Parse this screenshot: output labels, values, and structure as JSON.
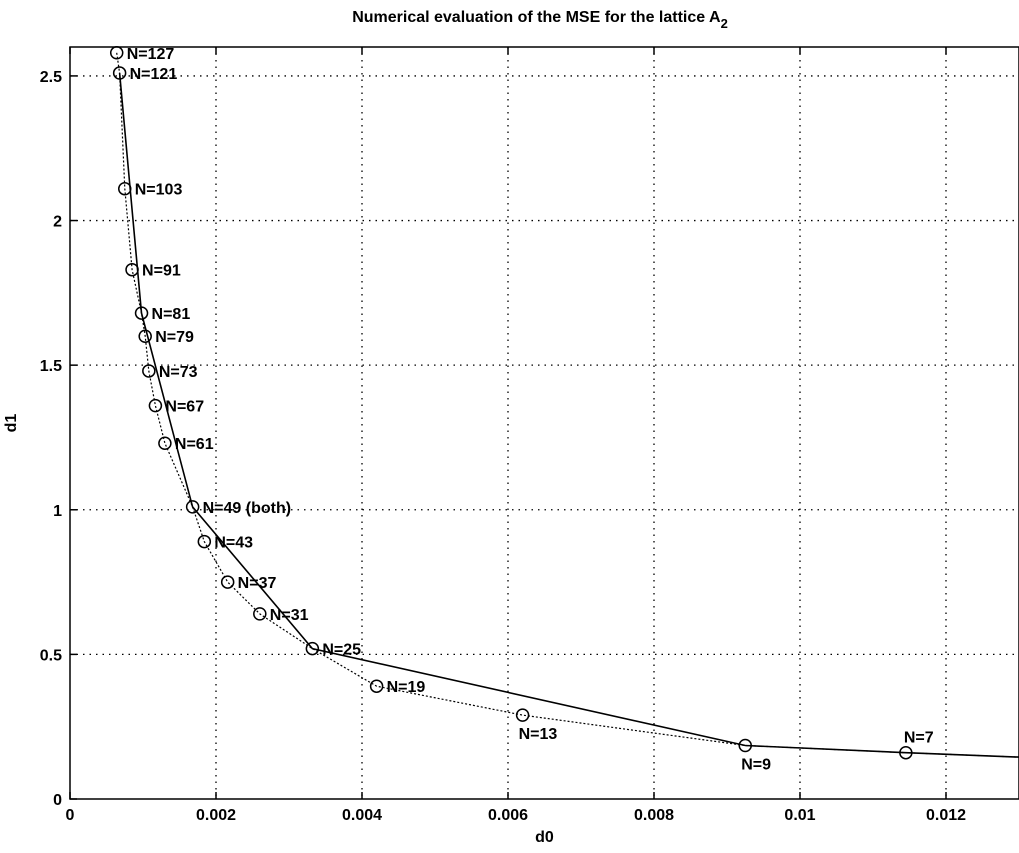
{
  "chart_data": {
    "type": "line",
    "title": "Numerical evaluation of the MSE for the lattice A",
    "title_subscript": "2",
    "xlabel": "d0",
    "ylabel": "d1",
    "xlim": [
      0,
      0.013
    ],
    "ylim": [
      0,
      2.6
    ],
    "xticks": [
      0,
      0.002,
      0.004,
      0.006,
      0.008,
      0.01,
      0.012
    ],
    "xtick_labels": [
      "0",
      "0.002",
      "0.004",
      "0.006",
      "0.008",
      "0.01",
      "0.012"
    ],
    "yticks": [
      0,
      0.5,
      1,
      1.5,
      2,
      2.5
    ],
    "ytick_labels": [
      "0",
      "0.5",
      "1",
      "1.5",
      "2",
      "2.5"
    ],
    "grid": true,
    "series": [
      {
        "style": "solid",
        "x": [
          0.00068,
          0.00098,
          0.00168,
          0.00332,
          0.00925,
          0.01145,
          0.013
        ],
        "y": [
          2.51,
          1.68,
          1.01,
          0.52,
          0.185,
          0.16,
          0.145
        ]
      },
      {
        "style": "dotted",
        "x": [
          0.00064,
          0.00068,
          0.00075,
          0.00085,
          0.00098,
          0.00103,
          0.00108,
          0.00117,
          0.0013,
          0.00168,
          0.00184,
          0.00216,
          0.0026,
          0.00332,
          0.0042,
          0.0062,
          0.00925,
          0.01145,
          0.013
        ],
        "y": [
          2.58,
          2.51,
          2.11,
          1.83,
          1.68,
          1.6,
          1.48,
          1.36,
          1.23,
          1.01,
          0.89,
          0.75,
          0.64,
          0.52,
          0.39,
          0.29,
          0.185,
          0.16,
          0.145
        ]
      }
    ],
    "annotations": [
      {
        "text": "N=127",
        "x": 0.00064,
        "y": 2.58,
        "pos": "right"
      },
      {
        "text": "N=121",
        "x": 0.00068,
        "y": 2.51,
        "pos": "right"
      },
      {
        "text": "N=103",
        "x": 0.00075,
        "y": 2.11,
        "pos": "right"
      },
      {
        "text": "N=91",
        "x": 0.00085,
        "y": 1.83,
        "pos": "right"
      },
      {
        "text": "N=81",
        "x": 0.00098,
        "y": 1.68,
        "pos": "right"
      },
      {
        "text": "N=79",
        "x": 0.00103,
        "y": 1.6,
        "pos": "right"
      },
      {
        "text": "N=73",
        "x": 0.00108,
        "y": 1.48,
        "pos": "right"
      },
      {
        "text": "N=67",
        "x": 0.00117,
        "y": 1.36,
        "pos": "right"
      },
      {
        "text": "N=61",
        "x": 0.0013,
        "y": 1.23,
        "pos": "right"
      },
      {
        "text": "N=49 (both)",
        "x": 0.00168,
        "y": 1.01,
        "pos": "right"
      },
      {
        "text": "N=43",
        "x": 0.00184,
        "y": 0.89,
        "pos": "right"
      },
      {
        "text": "N=37",
        "x": 0.00216,
        "y": 0.75,
        "pos": "right"
      },
      {
        "text": "N=31",
        "x": 0.0026,
        "y": 0.64,
        "pos": "right"
      },
      {
        "text": "N=25",
        "x": 0.00332,
        "y": 0.52,
        "pos": "right"
      },
      {
        "text": "N=19",
        "x": 0.0042,
        "y": 0.39,
        "pos": "right"
      },
      {
        "text": "N=13",
        "x": 0.0062,
        "y": 0.29,
        "pos": "below"
      },
      {
        "text": "N=9",
        "x": 0.00925,
        "y": 0.185,
        "pos": "below"
      },
      {
        "text": "N=7",
        "x": 0.01145,
        "y": 0.16,
        "pos": "above"
      }
    ],
    "markers": [
      {
        "x": 0.00064,
        "y": 2.58
      },
      {
        "x": 0.00068,
        "y": 2.51
      },
      {
        "x": 0.00075,
        "y": 2.11
      },
      {
        "x": 0.00085,
        "y": 1.83
      },
      {
        "x": 0.00098,
        "y": 1.68
      },
      {
        "x": 0.00103,
        "y": 1.6
      },
      {
        "x": 0.00108,
        "y": 1.48
      },
      {
        "x": 0.00117,
        "y": 1.36
      },
      {
        "x": 0.0013,
        "y": 1.23
      },
      {
        "x": 0.00168,
        "y": 1.01
      },
      {
        "x": 0.00184,
        "y": 0.89
      },
      {
        "x": 0.00216,
        "y": 0.75
      },
      {
        "x": 0.0026,
        "y": 0.64
      },
      {
        "x": 0.00332,
        "y": 0.52
      },
      {
        "x": 0.0042,
        "y": 0.39
      },
      {
        "x": 0.0062,
        "y": 0.29
      },
      {
        "x": 0.00925,
        "y": 0.185
      },
      {
        "x": 0.01145,
        "y": 0.16
      }
    ]
  }
}
